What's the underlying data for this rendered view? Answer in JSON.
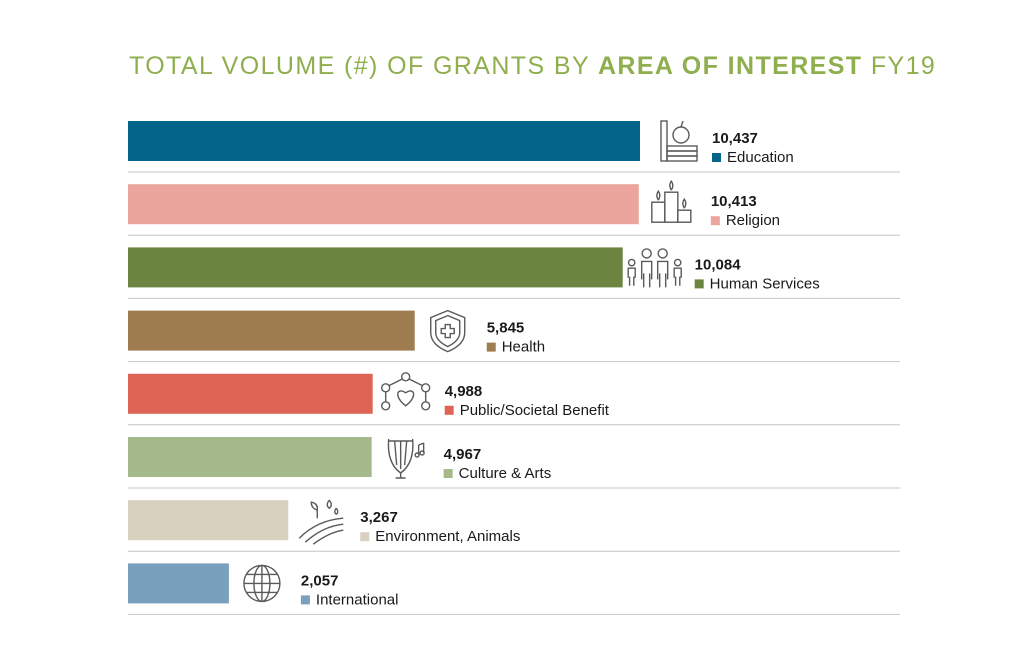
{
  "title": {
    "part1": "TOTAL VOLUME (#) OF GRANTS BY ",
    "bold": "AREA OF INTEREST",
    "part2": " FY19"
  },
  "chart_data": {
    "type": "bar",
    "orientation": "horizontal",
    "title": "TOTAL VOLUME (#) OF GRANTS BY AREA OF INTEREST FY19",
    "categories": [
      "Education",
      "Religion",
      "Human Services",
      "Health",
      "Public/Societal Benefit",
      "Culture & Arts",
      "Environment, Animals",
      "International"
    ],
    "values": [
      10437,
      10413,
      10084,
      5845,
      4988,
      4967,
      3267,
      2057
    ],
    "value_labels": [
      "10,437",
      "10,413",
      "10,084",
      "5,845",
      "4,988",
      "4,967",
      "3,267",
      "2,057"
    ],
    "colors": [
      "#04648a",
      "#eba59c",
      "#6b843f",
      "#a07d50",
      "#e06456",
      "#a6b98a",
      "#d8d1bf",
      "#79a0bd"
    ],
    "icons": [
      "books-apple-icon",
      "candles-icon",
      "family-icon",
      "health-shield-icon",
      "network-heart-icon",
      "lyre-icon",
      "field-plant-icon",
      "globe-icon"
    ],
    "xlim": [
      0,
      10437
    ]
  }
}
